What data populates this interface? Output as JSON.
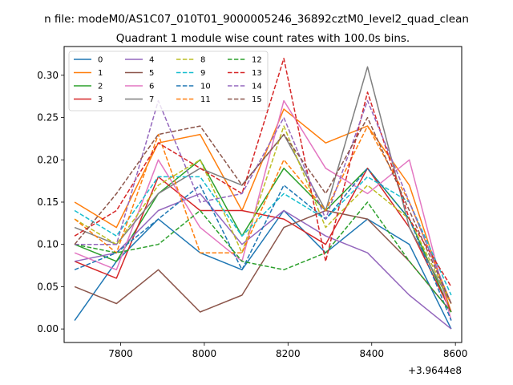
{
  "chart_data": {
    "type": "line",
    "suptitle": "n file: modeM0/AS1C07_010T01_9000005246_36892cztM0_level2_quad_clean",
    "title": "Quadrant 1 module wise count rates with 100.0s bins.",
    "xlabel": "",
    "ylabel": "",
    "x_offset_label": "+3.9644e8",
    "x": [
      7690,
      7790,
      7890,
      7990,
      8090,
      8190,
      8290,
      8390,
      8490,
      8590
    ],
    "xlim": [
      7665,
      8615
    ],
    "ylim": [
      -0.016,
      0.334
    ],
    "xticks": [
      7800,
      8000,
      8200,
      8400,
      8600
    ],
    "yticks": [
      0.0,
      0.05,
      0.1,
      0.15,
      0.2,
      0.25,
      0.3
    ],
    "xtick_labels": [
      "7800",
      "8000",
      "8200",
      "8400",
      "8600"
    ],
    "ytick_labels": [
      "0.00",
      "0.05",
      "0.10",
      "0.15",
      "0.20",
      "0.25",
      "0.30"
    ],
    "legend_position": "top-left",
    "legend_columns": 4,
    "series": [
      {
        "name": "0",
        "color": "#1f77b4",
        "dashed": false,
        "values": [
          0.01,
          0.08,
          0.13,
          0.09,
          0.07,
          0.14,
          0.09,
          0.13,
          0.1,
          0.0
        ]
      },
      {
        "name": "1",
        "color": "#ff7f0e",
        "dashed": false,
        "values": [
          0.15,
          0.12,
          0.22,
          0.23,
          0.14,
          0.26,
          0.22,
          0.24,
          0.17,
          0.02
        ]
      },
      {
        "name": "2",
        "color": "#2ca02c",
        "dashed": false,
        "values": [
          0.1,
          0.08,
          0.16,
          0.2,
          0.11,
          0.19,
          0.14,
          0.19,
          0.13,
          0.02
        ]
      },
      {
        "name": "3",
        "color": "#d62728",
        "dashed": false,
        "values": [
          0.08,
          0.06,
          0.18,
          0.14,
          0.14,
          0.13,
          0.1,
          0.19,
          0.12,
          0.02
        ]
      },
      {
        "name": "4",
        "color": "#9467bd",
        "dashed": false,
        "values": [
          0.08,
          0.09,
          0.14,
          0.16,
          0.1,
          0.14,
          0.11,
          0.09,
          0.04,
          0.0
        ]
      },
      {
        "name": "5",
        "color": "#8c564b",
        "dashed": false,
        "values": [
          0.05,
          0.03,
          0.07,
          0.02,
          0.04,
          0.12,
          0.14,
          0.13,
          0.08,
          0.02
        ]
      },
      {
        "name": "6",
        "color": "#e377c2",
        "dashed": false,
        "values": [
          0.09,
          0.07,
          0.2,
          0.12,
          0.08,
          0.27,
          0.19,
          0.16,
          0.2,
          0.01
        ]
      },
      {
        "name": "7",
        "color": "#7f7f7f",
        "dashed": false,
        "values": [
          0.12,
          0.1,
          0.16,
          0.19,
          0.17,
          0.23,
          0.14,
          0.31,
          0.12,
          0.03
        ]
      },
      {
        "name": "8",
        "color": "#bcbd22",
        "dashed": true,
        "values": [
          0.13,
          0.1,
          0.17,
          0.2,
          0.09,
          0.24,
          0.12,
          0.17,
          0.13,
          0.03
        ]
      },
      {
        "name": "9",
        "color": "#17becf",
        "dashed": true,
        "values": [
          0.14,
          0.11,
          0.18,
          0.18,
          0.11,
          0.16,
          0.13,
          0.18,
          0.15,
          0.04
        ]
      },
      {
        "name": "10",
        "color": "#1f77b4",
        "dashed": true,
        "values": [
          0.07,
          0.09,
          0.13,
          0.17,
          0.07,
          0.17,
          0.13,
          0.19,
          0.13,
          0.01
        ]
      },
      {
        "name": "11",
        "color": "#ff7f0e",
        "dashed": true,
        "values": [
          0.13,
          0.09,
          0.23,
          0.09,
          0.09,
          0.2,
          0.14,
          0.24,
          0.15,
          0.03
        ]
      },
      {
        "name": "12",
        "color": "#2ca02c",
        "dashed": true,
        "values": [
          0.1,
          0.09,
          0.1,
          0.14,
          0.08,
          0.07,
          0.09,
          0.15,
          0.08,
          0.02
        ]
      },
      {
        "name": "13",
        "color": "#d62728",
        "dashed": true,
        "values": [
          0.11,
          0.14,
          0.22,
          0.19,
          0.16,
          0.32,
          0.08,
          0.28,
          0.13,
          0.05
        ]
      },
      {
        "name": "14",
        "color": "#9467bd",
        "dashed": true,
        "values": [
          0.1,
          0.1,
          0.27,
          0.15,
          0.16,
          0.25,
          0.13,
          0.27,
          0.15,
          0.03
        ]
      },
      {
        "name": "15",
        "color": "#8c564b",
        "dashed": true,
        "values": [
          0.1,
          0.16,
          0.23,
          0.24,
          0.17,
          0.23,
          0.16,
          0.25,
          0.14,
          0.03
        ]
      }
    ]
  }
}
